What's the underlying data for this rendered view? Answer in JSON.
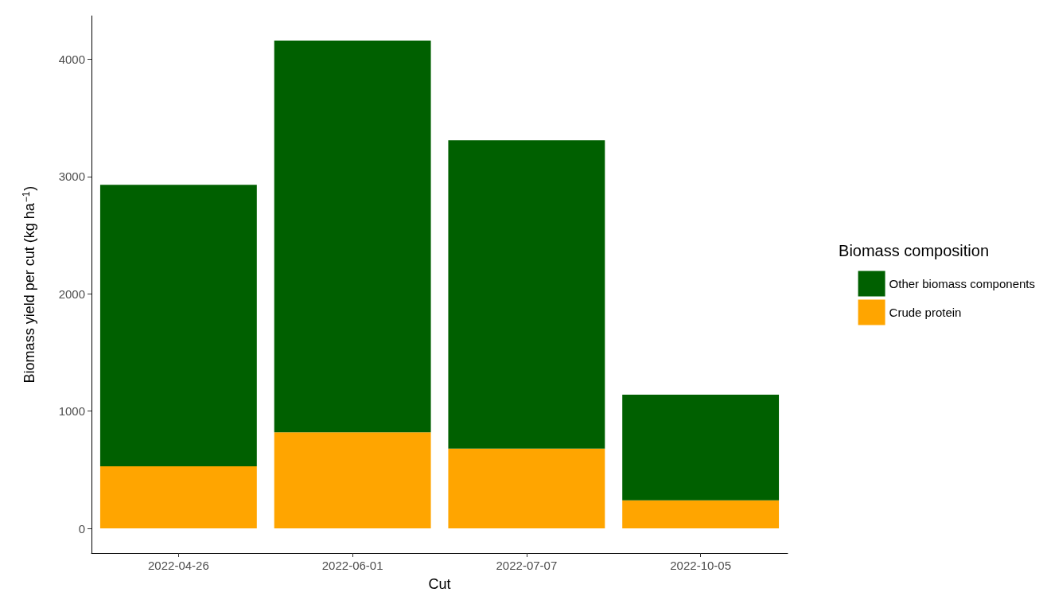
{
  "chart_data": {
    "type": "bar",
    "stacked": true,
    "xlabel": "Cut",
    "ylabel": "Biomass yield per cut (kg ha$^{−1}$)",
    "legend_title": "Biomass composition",
    "legend": "right",
    "grid": false,
    "categories": [
      "2022-04-26",
      "2022-06-01",
      "2022-07-07",
      "2022-10-05"
    ],
    "series": [
      {
        "name": "Crude protein",
        "color": "#ffa500",
        "values": [
          530,
          820,
          680,
          240
        ]
      },
      {
        "name": "Other biomass components",
        "color": "#006000",
        "values": [
          2400,
          3340,
          2630,
          900
        ]
      }
    ],
    "ylim": [
      -210,
      4370
    ],
    "yticks": [
      0,
      1000,
      2000,
      3000,
      4000
    ]
  }
}
